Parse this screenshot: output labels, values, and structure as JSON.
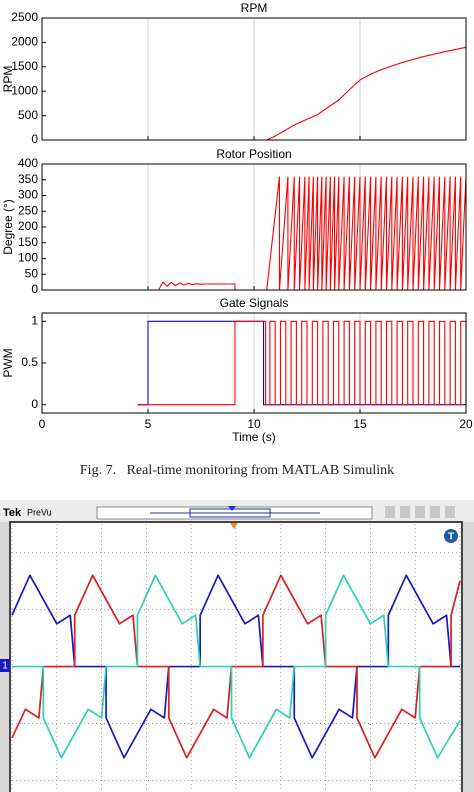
{
  "caption": "Fig. 7.   Real-time monitoring from MATLAB Simulink",
  "chart_data": [
    {
      "type": "line",
      "title": "RPM",
      "y_label": "RPM",
      "series": [
        {
          "color": "#ff0000",
          "x": [
            4.8,
            10.6,
            11,
            12,
            13,
            14,
            14.5,
            15,
            15.5,
            16,
            17,
            18,
            19,
            20
          ],
          "values": [
            0,
            0,
            80,
            330,
            520,
            820,
            1030,
            1230,
            1350,
            1440,
            1590,
            1710,
            1810,
            1900
          ]
        }
      ],
      "xlim": [
        0,
        20
      ],
      "xticks": [
        0,
        5,
        10,
        15,
        20
      ],
      "show_xtick_labels": false,
      "ylim": [
        0,
        2500
      ],
      "yticks": [
        0,
        500,
        1000,
        1500,
        2000,
        2500
      ],
      "grid": "x"
    },
    {
      "type": "line",
      "title": "Rotor Position",
      "y_label": "Degree (°)",
      "series": [
        {
          "color": "#ff0000",
          "x": [
            4.8,
            5.5,
            5.7,
            5.9,
            6.1,
            6.3,
            6.5,
            6.7,
            6.9,
            7.1,
            7.3,
            7.5,
            7.7,
            9.1,
            9.1,
            10.6,
            11.2,
            11.2,
            11.6,
            11.6,
            11.9,
            11.9,
            12.15,
            12.15,
            12.4,
            12.4,
            12.6,
            12.6,
            12.8,
            12.8,
            13,
            13,
            13.2,
            13.2,
            13.4,
            13.4,
            13.6,
            13.6,
            13.8,
            13.8,
            14,
            14,
            14.25,
            14.25,
            14.5,
            14.5,
            14.75,
            14.75,
            15,
            15,
            15.25,
            15.25,
            15.5,
            15.5,
            15.75,
            15.75,
            16,
            16,
            16.25,
            16.25,
            16.5,
            16.5,
            16.75,
            16.75,
            17,
            17,
            17.25,
            17.25,
            17.5,
            17.5,
            17.75,
            17.75,
            18,
            18,
            18.25,
            18.25,
            18.5,
            18.5,
            18.75,
            18.75,
            19,
            19,
            19.25,
            19.25,
            19.5,
            19.5,
            19.75,
            19.75,
            20
          ],
          "values": [
            0,
            0,
            25,
            12,
            24,
            14,
            22,
            16,
            21,
            17,
            20,
            18,
            19,
            19,
            0,
            0,
            360,
            0,
            360,
            0,
            360,
            0,
            360,
            0,
            360,
            0,
            360,
            0,
            360,
            0,
            360,
            0,
            360,
            0,
            360,
            0,
            360,
            0,
            360,
            0,
            360,
            0,
            360,
            0,
            360,
            0,
            360,
            0,
            360,
            0,
            360,
            0,
            360,
            0,
            360,
            0,
            360,
            0,
            360,
            0,
            360,
            0,
            360,
            0,
            360,
            0,
            360,
            0,
            360,
            0,
            360,
            0,
            360,
            0,
            360,
            0,
            360,
            0,
            360,
            0,
            360,
            0,
            360,
            0,
            360,
            0,
            360,
            0,
            360
          ]
        }
      ],
      "xlim": [
        0,
        20
      ],
      "xticks": [
        0,
        5,
        10,
        15,
        20
      ],
      "show_xtick_labels": false,
      "ylim": [
        0,
        400
      ],
      "yticks": [
        0,
        50,
        100,
        150,
        200,
        250,
        300,
        350,
        400
      ],
      "grid": "x"
    },
    {
      "type": "line",
      "title": "Gate Signals",
      "y_label": "PWM",
      "x_label": "Time (s)",
      "series": [
        {
          "color": "#0000ff",
          "x": [
            4.5,
            5,
            5,
            10.45,
            10.45,
            20
          ],
          "values": [
            0,
            0,
            1,
            1,
            0,
            0
          ]
        },
        {
          "color": "#ff0000",
          "x": [
            4.5,
            9.1,
            9.1,
            10.55,
            10.55,
            10.75,
            10.75,
            11,
            11,
            11.25,
            11.25,
            11.5,
            11.5,
            11.75,
            11.75,
            12,
            12,
            12.25,
            12.25,
            12.5,
            12.5,
            12.75,
            12.75,
            13,
            13,
            13.25,
            13.25,
            13.5,
            13.5,
            13.75,
            13.75,
            14,
            14,
            14.25,
            14.25,
            14.5,
            14.5,
            14.75,
            14.75,
            15,
            15,
            15.25,
            15.25,
            15.5,
            15.5,
            15.75,
            15.75,
            16,
            16,
            16.25,
            16.25,
            16.5,
            16.5,
            16.75,
            16.75,
            17,
            17,
            17.25,
            17.25,
            17.5,
            17.5,
            17.75,
            17.75,
            18,
            18,
            18.25,
            18.25,
            18.5,
            18.5,
            18.75,
            18.75,
            19,
            19,
            19.25,
            19.25,
            19.5,
            19.5,
            19.75,
            19.75,
            20,
            20
          ],
          "values": [
            0,
            0,
            1,
            1,
            0,
            0,
            1,
            1,
            0,
            0,
            1,
            1,
            0,
            0,
            1,
            1,
            0,
            0,
            1,
            1,
            0,
            0,
            1,
            1,
            0,
            0,
            1,
            1,
            0,
            0,
            1,
            1,
            0,
            0,
            1,
            1,
            0,
            0,
            1,
            1,
            0,
            0,
            1,
            1,
            0,
            0,
            1,
            1,
            0,
            0,
            1,
            1,
            0,
            0,
            1,
            1,
            0,
            0,
            1,
            1,
            0,
            0,
            1,
            1,
            0,
            0,
            1,
            1,
            0,
            0,
            1,
            1,
            0,
            0,
            1,
            1,
            0,
            0,
            1,
            1,
            0
          ]
        }
      ],
      "xlim": [
        0,
        20
      ],
      "xticks": [
        0,
        5,
        10,
        15,
        20
      ],
      "show_xtick_labels": true,
      "ylim": [
        -0.1,
        1.1
      ],
      "yticks": [
        0,
        0.5,
        1
      ],
      "grid": "x"
    },
    {
      "type": "scope",
      "brand": "Tek",
      "status": "PreVu",
      "channel_marker": "1",
      "trigger_label": "T",
      "xlim": [
        0,
        10
      ],
      "xticks": [
        0,
        1,
        2,
        3,
        4,
        5,
        6,
        7,
        8,
        9,
        10
      ],
      "ylim": [
        -2.2,
        2.5
      ],
      "yticks": [
        -2,
        -1,
        0,
        1,
        2
      ],
      "grid": "dotted",
      "series": [
        {
          "color": "#1818c8",
          "x": [
            0,
            0.4,
            1.0,
            1.3,
            1.4,
            2.1,
            2.1,
            2.5,
            3.1,
            3.4,
            3.5,
            4.2,
            4.2,
            4.6,
            5.2,
            5.5,
            5.6,
            6.3,
            6.3,
            6.7,
            7.3,
            7.6,
            7.7,
            8.4,
            8.4,
            8.8,
            9.4,
            9.7,
            9.8,
            10
          ],
          "values": [
            0.9,
            1.6,
            0.75,
            0.9,
            0,
            0,
            -0.9,
            -1.6,
            -0.75,
            -0.9,
            0,
            0,
            0.9,
            1.6,
            0.75,
            0.9,
            0,
            0,
            -0.9,
            -1.6,
            -0.75,
            -0.9,
            0,
            0,
            0.9,
            1.6,
            0.75,
            0.9,
            0,
            0
          ]
        },
        {
          "color": "#dc1e1e",
          "x": [
            0,
            0.3,
            0.6,
            0.7,
            1.4,
            1.4,
            1.8,
            2.4,
            2.7,
            2.8,
            3.5,
            3.5,
            3.9,
            4.5,
            4.8,
            4.9,
            5.6,
            5.6,
            6.0,
            6.6,
            6.9,
            7.0,
            7.7,
            7.7,
            8.1,
            8.7,
            9.0,
            9.1,
            9.8,
            9.8,
            10
          ],
          "values": [
            -1.25,
            -0.75,
            -0.9,
            0,
            0,
            0.9,
            1.6,
            0.75,
            0.9,
            0,
            0,
            -0.9,
            -1.6,
            -0.75,
            -0.9,
            0,
            0,
            0.9,
            1.6,
            0.75,
            0.9,
            0,
            0,
            -0.9,
            -1.6,
            -0.75,
            -0.9,
            0,
            0,
            0.9,
            1.5
          ]
        },
        {
          "color": "#2cd2b4",
          "x": [
            0,
            0.7,
            0.7,
            1.1,
            1.7,
            2.0,
            2.1,
            2.8,
            2.8,
            3.2,
            3.8,
            4.1,
            4.2,
            4.9,
            4.9,
            5.3,
            5.9,
            6.2,
            6.3,
            7.0,
            7.0,
            7.4,
            8.0,
            8.3,
            8.4,
            9.1,
            9.1,
            9.5,
            10
          ],
          "values": [
            0,
            0,
            -0.9,
            -1.6,
            -0.75,
            -0.9,
            0,
            0,
            0.9,
            1.6,
            0.75,
            0.9,
            0,
            0,
            -0.9,
            -1.6,
            -0.75,
            -0.9,
            0,
            0,
            0.9,
            1.6,
            0.75,
            0.9,
            0,
            0,
            -0.9,
            -1.6,
            -0.95
          ]
        }
      ]
    }
  ]
}
